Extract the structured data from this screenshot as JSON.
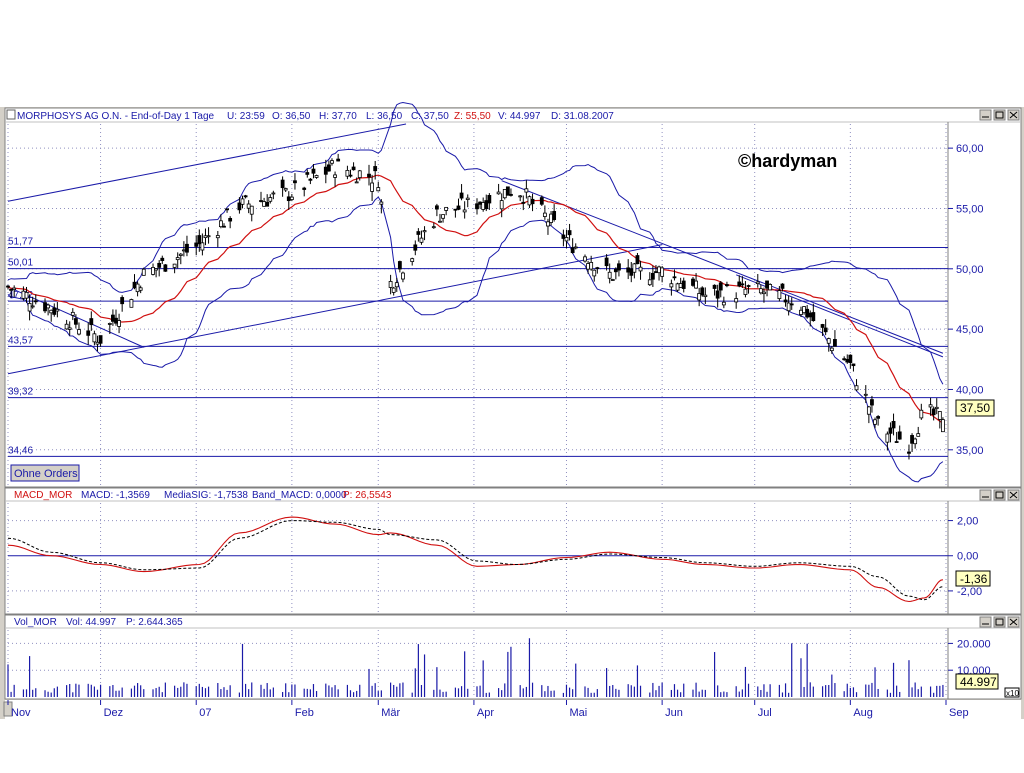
{
  "price_panel": {
    "header": {
      "instrument": "MORPHOSYS AG O.N. - End-of-Day 1 Tage",
      "u": "U: 23:59",
      "o": "O: 36,50",
      "h": "H: 37,70",
      "l": "L: 36,50",
      "c": "C: 37,50",
      "z": "Z: 55,50",
      "v": "V: 44.997",
      "d": "D: 31.08.2007"
    },
    "watermark": "©hardyman",
    "button_label": "Ohne Orders",
    "last_price_label": "37,50",
    "y_ticks": [
      "60,00",
      "55,00",
      "50,00",
      "45,00",
      "40,00",
      "35,00"
    ],
    "hline_labels": [
      "51,77",
      "50,01",
      "47,32",
      "43,57",
      "39,32",
      "34,46"
    ]
  },
  "macd_panel": {
    "header": {
      "name": "MACD_MOR",
      "macd": "MACD: -1,3569",
      "signal": "MediaSIG: -1,7538",
      "band": "Band_MACD: 0,0000",
      "p": "P: 26,5543"
    },
    "y_ticks": [
      "2,00",
      "0,00",
      "-2,00"
    ],
    "last_label": "-1,36"
  },
  "volume_panel": {
    "header": {
      "name": "Vol_MOR",
      "vol": "Vol: 44.997",
      "p": "P: 2.644.365"
    },
    "y_ticks": [
      "20.000",
      "10.000"
    ],
    "last_label": "44.997",
    "scale_label": "x10"
  },
  "x_axis": {
    "labels": [
      "Nov",
      "Dez",
      "07",
      "Feb",
      "Mär",
      "Apr",
      "Mai",
      "Jun",
      "Jul",
      "Aug",
      "Sep"
    ]
  },
  "colors": {
    "axis": "#1a1aa8",
    "candle": "#000000",
    "moving_average": "#d01010",
    "bollinger": "#1a1aa8",
    "signal": "#000000",
    "panel_bg": "#ffffff",
    "outer_bg": "#d4d0c8"
  },
  "chart_data": [
    {
      "type": "candlestick",
      "title": "MORPHOSYS AG O.N. - End-of-Day 1 Tage",
      "x_start": "2006-11-01",
      "x_end": "2007-08-31",
      "ylim": [
        32,
        62
      ],
      "grid": true,
      "indicators": [
        "Bollinger Bands",
        "Moving Average",
        "Trendlines",
        "Horizontal levels"
      ],
      "horizontal_levels": [
        51.77,
        50.01,
        47.32,
        43.57,
        39.32,
        34.46
      ],
      "monthly_closes": [
        {
          "date": "2006-11-01",
          "value": 48.5
        },
        {
          "date": "2006-11-15",
          "value": 46.8
        },
        {
          "date": "2006-12-01",
          "value": 44.2
        },
        {
          "date": "2006-12-15",
          "value": 49.5
        },
        {
          "date": "2007-01-02",
          "value": 52.0
        },
        {
          "date": "2007-01-15",
          "value": 55.2
        },
        {
          "date": "2007-02-01",
          "value": 56.3
        },
        {
          "date": "2007-02-15",
          "value": 58.5
        },
        {
          "date": "2007-03-01",
          "value": 57.5
        },
        {
          "date": "2007-03-05",
          "value": 48.8
        },
        {
          "date": "2007-03-20",
          "value": 54.5
        },
        {
          "date": "2007-04-02",
          "value": 55.5
        },
        {
          "date": "2007-04-15",
          "value": 56.7
        },
        {
          "date": "2007-05-01",
          "value": 52.5
        },
        {
          "date": "2007-05-15",
          "value": 49.5
        },
        {
          "date": "2007-06-01",
          "value": 49.8
        },
        {
          "date": "2007-06-15",
          "value": 47.8
        },
        {
          "date": "2007-07-01",
          "value": 48.3
        },
        {
          "date": "2007-07-15",
          "value": 47.3
        },
        {
          "date": "2007-08-01",
          "value": 42.0
        },
        {
          "date": "2007-08-10",
          "value": 37.0
        },
        {
          "date": "2007-08-20",
          "value": 35.5
        },
        {
          "date": "2007-08-25",
          "value": 38.2
        },
        {
          "date": "2007-08-31",
          "value": 37.5
        }
      ],
      "last": {
        "open": 36.5,
        "high": 37.7,
        "low": 36.5,
        "close": 37.5
      }
    },
    {
      "type": "line",
      "title": "MACD_MOR",
      "ylim": [
        -3.2,
        3.0
      ],
      "series": [
        {
          "name": "MACD",
          "values": [
            0.6,
            0.0,
            -0.5,
            -0.9,
            -0.5,
            1.3,
            2.2,
            1.8,
            1.2,
            1.3,
            0.6,
            -0.6,
            -0.5,
            -0.1,
            0.2,
            -0.2,
            -0.5,
            -0.7,
            -0.5,
            -0.8,
            -1.8,
            -2.6,
            -2.4,
            -1.36
          ]
        },
        {
          "name": "MediaSIG",
          "values": [
            1.0,
            0.2,
            -0.4,
            -0.8,
            -0.7,
            1.0,
            2.0,
            1.9,
            1.5,
            1.2,
            0.9,
            -0.3,
            -0.5,
            -0.2,
            0.1,
            -0.1,
            -0.4,
            -0.6,
            -0.4,
            -0.6,
            -1.2,
            -2.3,
            -2.5,
            -1.7538
          ]
        }
      ],
      "reference_line": 0
    },
    {
      "type": "bar",
      "title": "Vol_MOR",
      "ylim": [
        0,
        25000
      ],
      "scale_note": "x10",
      "last": 44997
    }
  ]
}
